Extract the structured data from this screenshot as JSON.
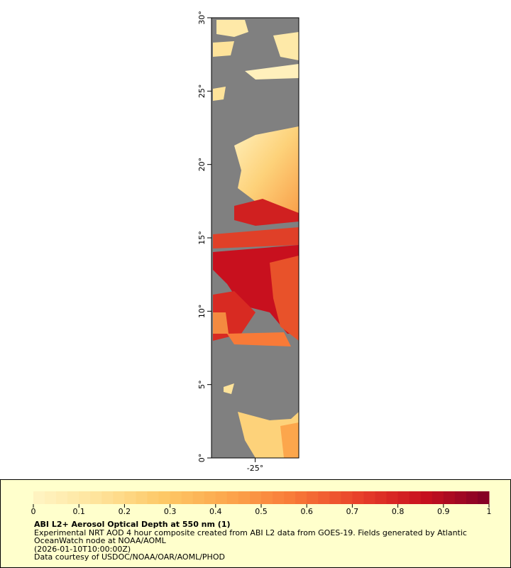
{
  "map": {
    "lat_range": [
      0,
      30
    ],
    "lon_range": [
      -28,
      -22
    ],
    "lat_ticks": [
      {
        "value": 0,
        "label": "0°"
      },
      {
        "value": 5,
        "label": "5°"
      },
      {
        "value": 10,
        "label": "10°"
      },
      {
        "value": 15,
        "label": "15°"
      },
      {
        "value": 20,
        "label": "20°"
      },
      {
        "value": 25,
        "label": "25°"
      },
      {
        "value": 30,
        "label": "30°"
      }
    ],
    "lon_ticks": [
      {
        "value": -25,
        "label": "-25°"
      }
    ]
  },
  "colorbar": {
    "range": [
      0,
      1
    ],
    "ticks": [
      0,
      0.1,
      0.2,
      0.3,
      0.4,
      0.5,
      0.6,
      0.7,
      0.8,
      0.9,
      1
    ],
    "colors": [
      "#fff4c4",
      "#fee39a",
      "#fdc866",
      "#fca64c",
      "#f87a38",
      "#e8402a",
      "#c8101e",
      "#800026"
    ]
  },
  "legend": {
    "title": "ABI L2+ Aerosol Optical Depth at 550 nm (1)",
    "lines": [
      "Experimental NRT AOD 4 hour composite created from ABI L2 data from GOES-19. Fields generated by Atlantic",
      "OceanWatch node at NOAA/AOML",
      "(2026-01-10T10:00:00Z)",
      "Data courtesy of USDOC/NOAA/OAR/AOML/PHOD"
    ]
  }
}
